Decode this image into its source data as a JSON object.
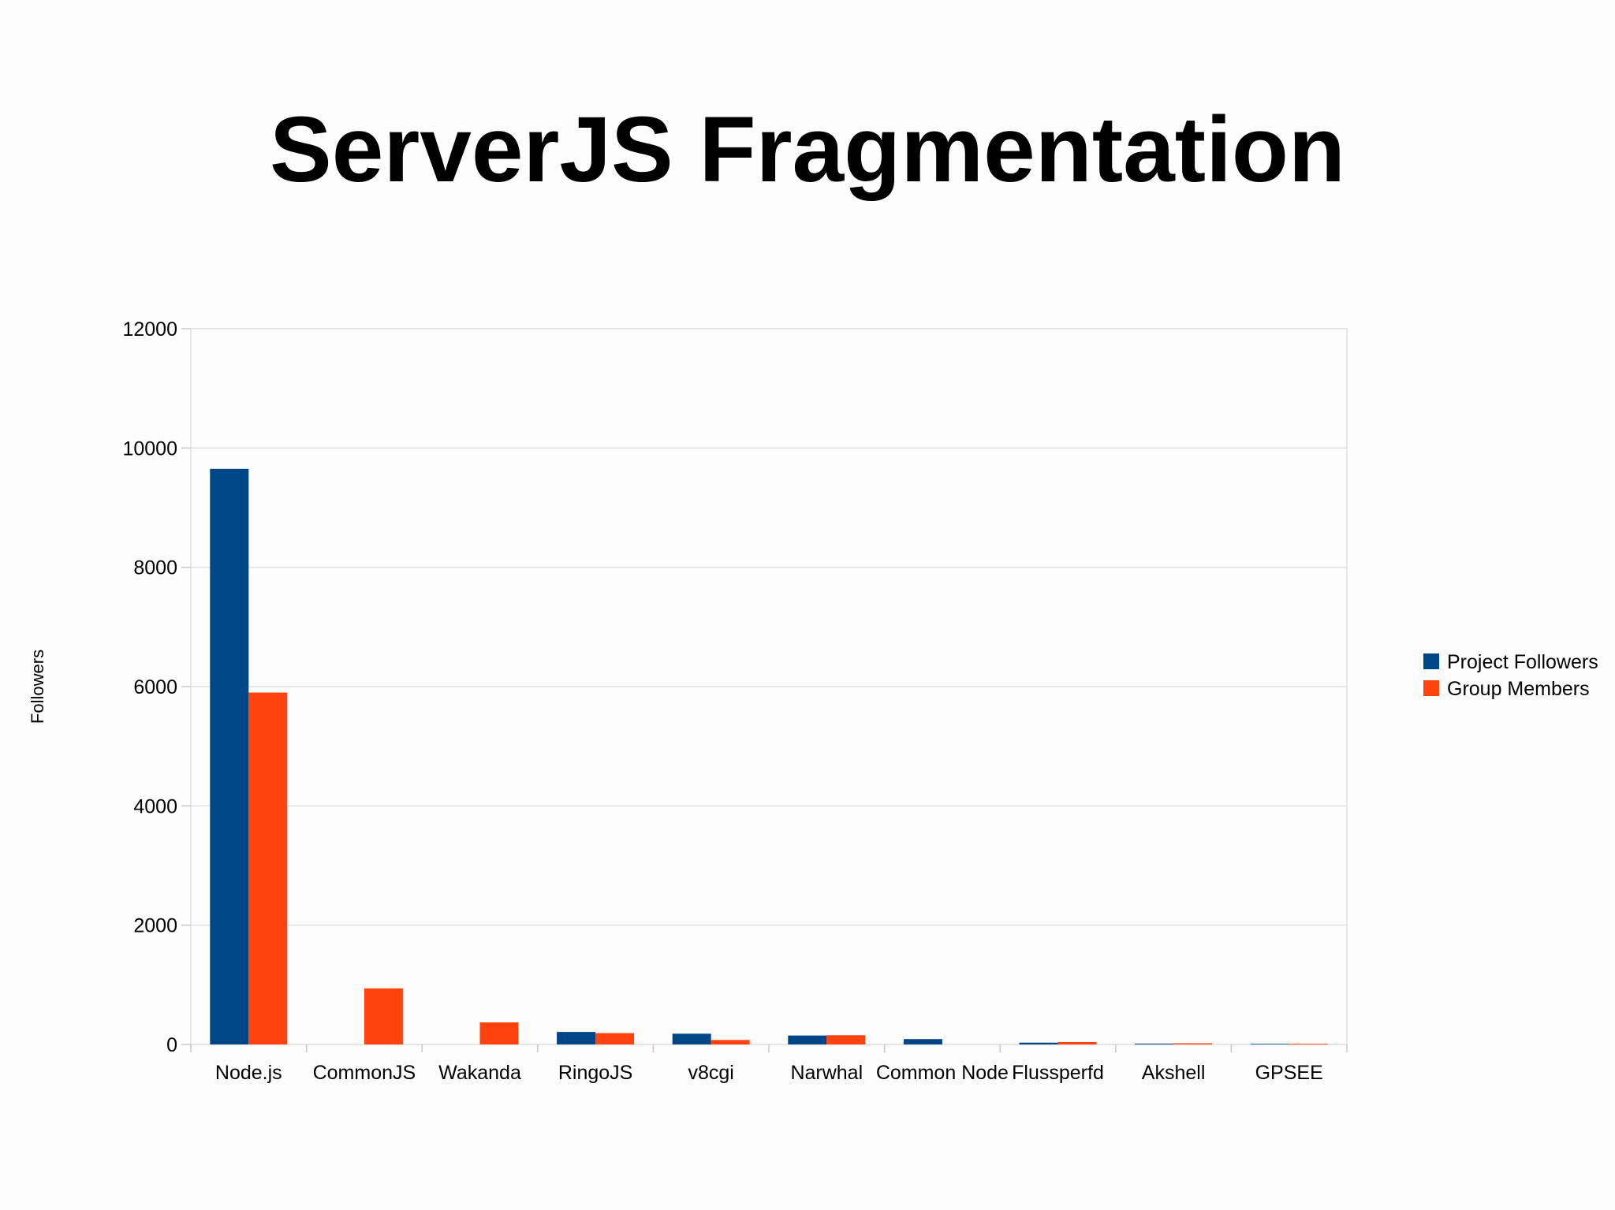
{
  "slide": {
    "title": "ServerJS Fragmentation"
  },
  "chart_data": {
    "type": "bar",
    "title": "",
    "xlabel": "",
    "ylabel": "Followers",
    "ylim": [
      0,
      12000
    ],
    "yticks": [
      0,
      2000,
      4000,
      6000,
      8000,
      10000,
      12000
    ],
    "grid": true,
    "legend_position": "right",
    "categories": [
      "Node.js",
      "CommonJS",
      "Wakanda",
      "RingoJS",
      "v8cgi",
      "Narwhal",
      "Common Node",
      "Flussperfd",
      "Akshell",
      "GPSEE"
    ],
    "series": [
      {
        "name": "Project Followers",
        "color": "#004586",
        "values": [
          9650,
          0,
          0,
          210,
          180,
          150,
          90,
          30,
          15,
          10
        ]
      },
      {
        "name": "Group Members",
        "color": "#ff420e",
        "values": [
          5900,
          940,
          370,
          190,
          75,
          155,
          0,
          40,
          20,
          12
        ]
      }
    ]
  }
}
